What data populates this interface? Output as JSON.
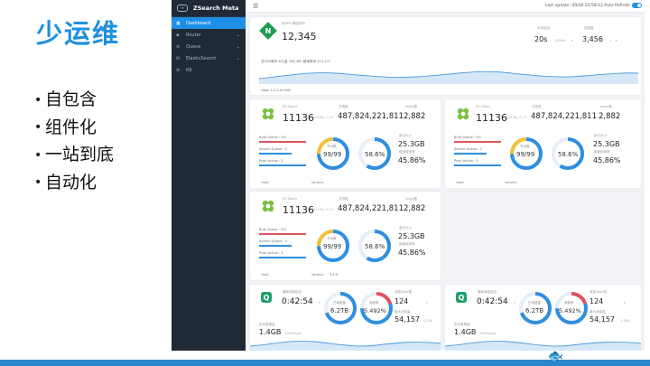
{
  "slide": {
    "title": "少运维",
    "bullet_char": "•",
    "bullets": [
      "自包含",
      "组件化",
      "一站到底",
      "自动化"
    ]
  },
  "app": {
    "brand": "ZSearch Meta",
    "nav": [
      {
        "label": "Dashboard",
        "icon": "dashboard-icon",
        "active": true
      },
      {
        "label": "Router",
        "icon": "router-icon"
      },
      {
        "label": "Queue",
        "icon": "queue-icon"
      },
      {
        "label": "ElasticSearch",
        "icon": "database-icon"
      },
      {
        "label": "K8",
        "icon": "cluster-icon"
      }
    ],
    "topbar": {
      "last_update": "Last update: 09/26 23:58:12",
      "auto_refresh": "Auto Refresh"
    },
    "nginx": {
      "badge": "N",
      "label": "总QPS 峰值时间",
      "value": "12,345",
      "avg_label": "平均延迟",
      "avg_value": "20s",
      "avg_unit": "300ms",
      "conn_label": "连接数",
      "conn_value": "3,456",
      "conn_unit": "1",
      "line_stats": "总2XX请求 201量 198,465 错误请求 212,121",
      "host": "Host: 1.2.3.4:9200"
    },
    "es_cards": [
      {
        "logo": "elastic-leaf",
        "shards_label": "ES Shard",
        "shards": "11136",
        "shards_sub": "11136 / 0 / 0",
        "docs_label": "文档数",
        "docs": "487,824,221,811",
        "index_label": "Index数",
        "index": "2,882",
        "bulk_label": "Bulk Queue : 5%",
        "search_label": "Search Queue : 2",
        "push_label": "Push Active : 3",
        "donut1_label": "节点数",
        "donut1_value": "99/99",
        "donut2_value": "58.6%",
        "disk_label": "索引大小",
        "disk_value": "25.3GB",
        "mem_label": "磁盘使用率",
        "mem_value": "45.86%",
        "host_label": "Host:",
        "version_label": "Version:",
        "version": ""
      },
      {
        "logo": "elastic-leaf",
        "shards_label": "ES Shard",
        "shards": "11136",
        "shards_sub": "11136 / 0 / 0",
        "docs_label": "文档数",
        "docs": "487,824,221,811",
        "index_label": "Index数",
        "index": "2,882",
        "bulk_label": "Bulk Queue : 5%",
        "search_label": "Search Queue : 2",
        "push_label": "Push Active : 3",
        "donut1_label": "节点数",
        "donut1_value": "99/99",
        "donut2_value": "58.6%",
        "disk_label": "索引大小",
        "disk_value": "25.3GB",
        "mem_label": "磁盘使用率",
        "mem_value": "45.86%",
        "host_label": "Host:",
        "version_label": "Version:",
        "version": ""
      },
      {
        "logo": "elastic-leaf",
        "shards_label": "ES Shard",
        "shards": "11136",
        "shards_sub": "11136 / 0 / 0",
        "docs_label": "文档数",
        "docs": "487,824,221,811",
        "index_label": "Index数",
        "index": "2,882",
        "bulk_label": "Bulk Queue : 5%",
        "search_label": "Search Queue : 2",
        "push_label": "Push Active : 3",
        "donut1_label": "节点数",
        "donut1_value": "99/99",
        "donut2_value": "58.6%",
        "disk_label": "索引大小",
        "disk_value": "25.3GB",
        "mem_label": "磁盘使用率",
        "mem_value": "45.86%",
        "host_label": "Host:",
        "version_label": "Version:",
        "version": "3.1.0"
      }
    ],
    "queue_cards": [
      {
        "logo": "Q",
        "time_label": "最新消息延迟",
        "time": "0:42:54",
        "donut1_label": "已消费量",
        "donut1_value": "6.2TB",
        "donut2_label": "消费率",
        "donut2_value": "5.492%",
        "count_label": "消费Topic数",
        "count": "124",
        "total_label": "最大消费量",
        "total": "54,157",
        "total_unit": "1,268",
        "size_label": "历史数据量",
        "size": "1.4GB",
        "size_unit": "1000Msg/s"
      },
      {
        "logo": "Q",
        "time_label": "最新消息延迟",
        "time": "0:42:54",
        "donut1_label": "已消费量",
        "donut1_value": "6.2TB",
        "donut2_label": "消费率",
        "donut2_value": "5.492%",
        "count_label": "消费Topic数",
        "count": "124",
        "total_label": "最大消费量",
        "total": "54,157",
        "total_unit": "1,268",
        "size_label": "历史数据量",
        "size": "1.4GB",
        "size_unit": "1000Msg/s"
      }
    ]
  }
}
